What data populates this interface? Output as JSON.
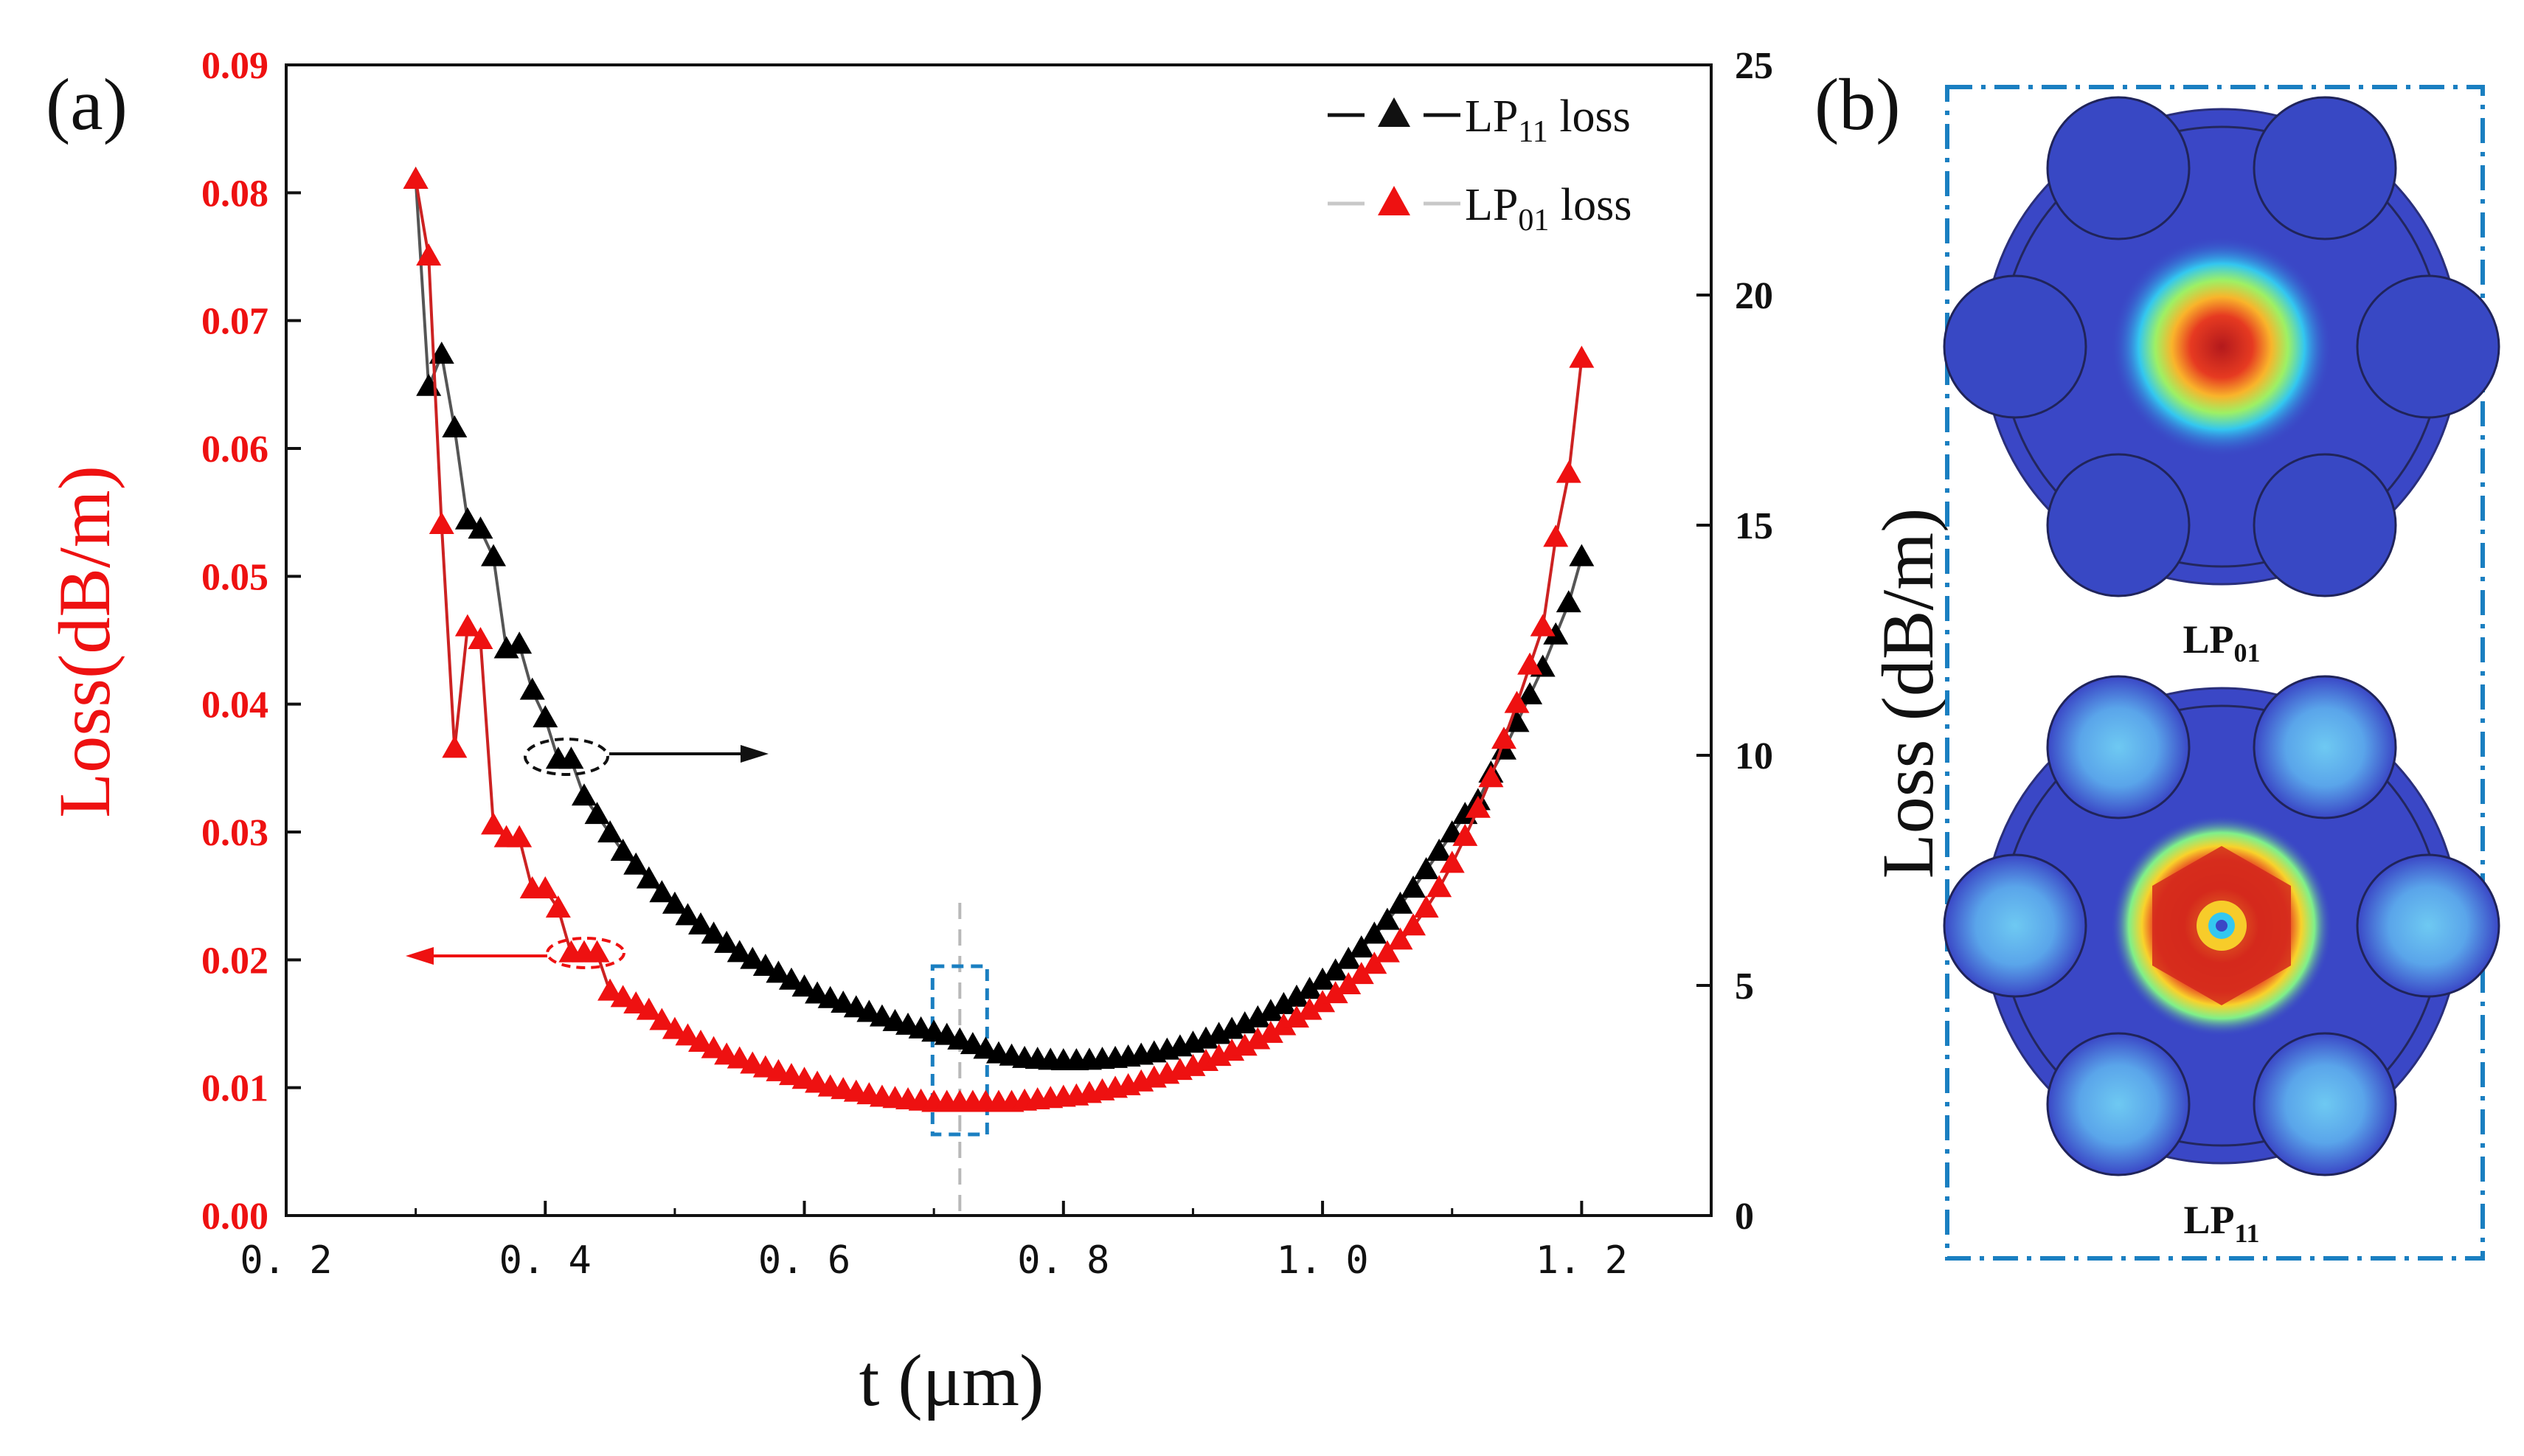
{
  "panel_a_label": "(a)",
  "panel_b_label": "(b)",
  "chart_data": {
    "type": "line",
    "xlabel": "t (μm)",
    "ylabel_left": "Loss(dB/m)",
    "ylabel_right": "Loss (dB/m)",
    "xlim": [
      0.2,
      1.3
    ],
    "ylim_left": [
      0.0,
      0.09
    ],
    "ylim_right": [
      0,
      25
    ],
    "x_ticks": [
      "0.2",
      "0.4",
      "0.6",
      "0.8",
      "1.0",
      "1.2"
    ],
    "y_ticks_left": [
      "0.00",
      "0.01",
      "0.02",
      "0.03",
      "0.04",
      "0.05",
      "0.06",
      "0.07",
      "0.08",
      "0.09"
    ],
    "y_ticks_right": [
      "0",
      "5",
      "10",
      "15",
      "20",
      "25"
    ],
    "x": [
      0.3,
      0.31,
      0.32,
      0.33,
      0.34,
      0.35,
      0.36,
      0.37,
      0.38,
      0.39,
      0.4,
      0.41,
      0.42,
      0.43,
      0.44,
      0.45,
      0.46,
      0.47,
      0.48,
      0.49,
      0.5,
      0.51,
      0.52,
      0.53,
      0.54,
      0.55,
      0.56,
      0.57,
      0.58,
      0.59,
      0.6,
      0.61,
      0.62,
      0.63,
      0.64,
      0.65,
      0.66,
      0.67,
      0.68,
      0.69,
      0.7,
      0.71,
      0.72,
      0.73,
      0.74,
      0.75,
      0.76,
      0.77,
      0.78,
      0.79,
      0.8,
      0.81,
      0.82,
      0.83,
      0.84,
      0.85,
      0.86,
      0.87,
      0.88,
      0.89,
      0.9,
      0.91,
      0.92,
      0.93,
      0.94,
      0.95,
      0.96,
      0.97,
      0.98,
      0.99,
      1.0,
      1.01,
      1.02,
      1.03,
      1.04,
      1.05,
      1.06,
      1.07,
      1.08,
      1.09,
      1.1,
      1.11,
      1.12,
      1.13,
      1.14,
      1.15,
      1.16,
      1.17,
      1.18,
      1.19,
      1.2
    ],
    "series": [
      {
        "name": "LP11 loss",
        "legend_main": "LP",
        "legend_sub": "11",
        "legend_tail": " loss",
        "axis": "right",
        "color": "#000000",
        "line_color": "#555555",
        "values": [
          22.5,
          18.0,
          18.7,
          17.1,
          15.1,
          14.9,
          14.3,
          12.3,
          12.4,
          11.4,
          10.8,
          9.9,
          9.9,
          9.1,
          8.7,
          8.3,
          7.9,
          7.6,
          7.3,
          7.0,
          6.75,
          6.5,
          6.3,
          6.1,
          5.9,
          5.7,
          5.55,
          5.4,
          5.25,
          5.1,
          4.95,
          4.8,
          4.7,
          4.6,
          4.5,
          4.4,
          4.3,
          4.2,
          4.12,
          4.04,
          3.97,
          3.9,
          3.8,
          3.7,
          3.6,
          3.5,
          3.45,
          3.4,
          3.38,
          3.36,
          3.35,
          3.35,
          3.36,
          3.38,
          3.4,
          3.43,
          3.47,
          3.52,
          3.58,
          3.65,
          3.73,
          3.82,
          3.92,
          4.03,
          4.15,
          4.28,
          4.42,
          4.57,
          4.73,
          4.9,
          5.1,
          5.3,
          5.55,
          5.8,
          6.1,
          6.4,
          6.75,
          7.1,
          7.5,
          7.9,
          8.3,
          8.7,
          9.0,
          9.6,
          10.1,
          10.7,
          11.3,
          11.9,
          12.6,
          13.3,
          14.3
        ]
      },
      {
        "name": "LP01 loss",
        "legend_main": "LP",
        "legend_sub": "01",
        "legend_tail": " loss",
        "axis": "left",
        "color": "#ee1111",
        "line_color": "#cc2222",
        "values": [
          0.081,
          0.075,
          0.054,
          0.0365,
          0.046,
          0.045,
          0.0305,
          0.0295,
          0.0295,
          0.0255,
          0.0255,
          0.024,
          0.0205,
          0.0205,
          0.0205,
          0.0175,
          0.017,
          0.0165,
          0.016,
          0.0152,
          0.0145,
          0.014,
          0.0135,
          0.013,
          0.0125,
          0.0122,
          0.0118,
          0.0115,
          0.0112,
          0.0109,
          0.0106,
          0.0103,
          0.01,
          0.0098,
          0.0096,
          0.0094,
          0.0092,
          0.0091,
          0.009,
          0.0089,
          0.0088,
          0.0088,
          0.0088,
          0.0088,
          0.0088,
          0.0088,
          0.0088,
          0.0089,
          0.009,
          0.0091,
          0.0092,
          0.0093,
          0.0095,
          0.0097,
          0.0099,
          0.0101,
          0.0104,
          0.0107,
          0.011,
          0.0113,
          0.0116,
          0.012,
          0.0124,
          0.0128,
          0.0132,
          0.0137,
          0.0142,
          0.0148,
          0.0154,
          0.016,
          0.0166,
          0.0173,
          0.018,
          0.0188,
          0.0196,
          0.0205,
          0.0215,
          0.0226,
          0.024,
          0.0256,
          0.0275,
          0.0296,
          0.0318,
          0.0342,
          0.0372,
          0.04,
          0.043,
          0.046,
          0.053,
          0.058,
          0.067
        ]
      }
    ],
    "annotations": [
      "black ellipse at t≈0.42 with arrow pointing to right axis",
      "red ellipse at t≈0.43 with arrow pointing to left axis",
      "grey dashed vertical line at t≈0.72",
      "blue dashed box around t≈0.72"
    ],
    "marker_line_x": 0.72
  },
  "mode_panels": [
    {
      "label_main": "LP",
      "label_sub": "01",
      "pattern": "fundamental"
    },
    {
      "label_main": "LP",
      "label_sub": "11",
      "pattern": "higher-order"
    }
  ],
  "colors": {
    "left_axis": "#ee1111",
    "right_axis": "#111111",
    "panel_border": "#1a7fc1",
    "field_background": "#3a47c6"
  }
}
